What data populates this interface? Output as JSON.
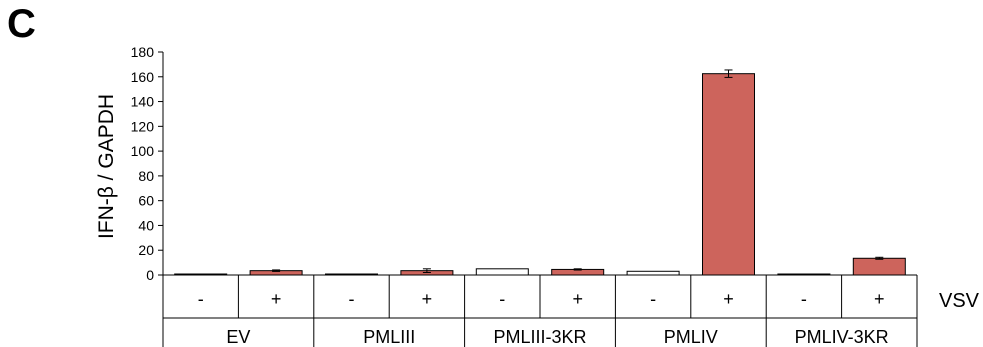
{
  "panel_letter": "C",
  "chart_data": {
    "type": "bar",
    "ylabel": "IFN-β / GAPDH",
    "ylim": [
      0,
      180
    ],
    "yticks": [
      0,
      20,
      40,
      60,
      80,
      100,
      120,
      140,
      160,
      180
    ],
    "treatment_label": "VSV",
    "groups": [
      "EV",
      "PMLIII",
      "PMLIII-3KR",
      "PMLIV",
      "PMLIV-3KR"
    ],
    "categories": [
      "-",
      "+",
      "-",
      "+",
      "-",
      "+",
      "-",
      "+",
      "-",
      "+"
    ],
    "values": [
      0.5,
      3.5,
      0.5,
      3.5,
      5.0,
      4.5,
      3.0,
      162.5,
      0.8,
      13.5
    ],
    "errors": [
      0,
      0.6,
      0,
      1.5,
      0,
      0.5,
      0,
      3.0,
      0,
      0.8
    ],
    "bar_colors": [
      "#ffffff",
      "#cd645c",
      "#ffffff",
      "#cd645c",
      "#ffffff",
      "#cd645c",
      "#ffffff",
      "#cd645c",
      "#ffffff",
      "#cd645c"
    ],
    "grid": false,
    "legend": "none"
  }
}
